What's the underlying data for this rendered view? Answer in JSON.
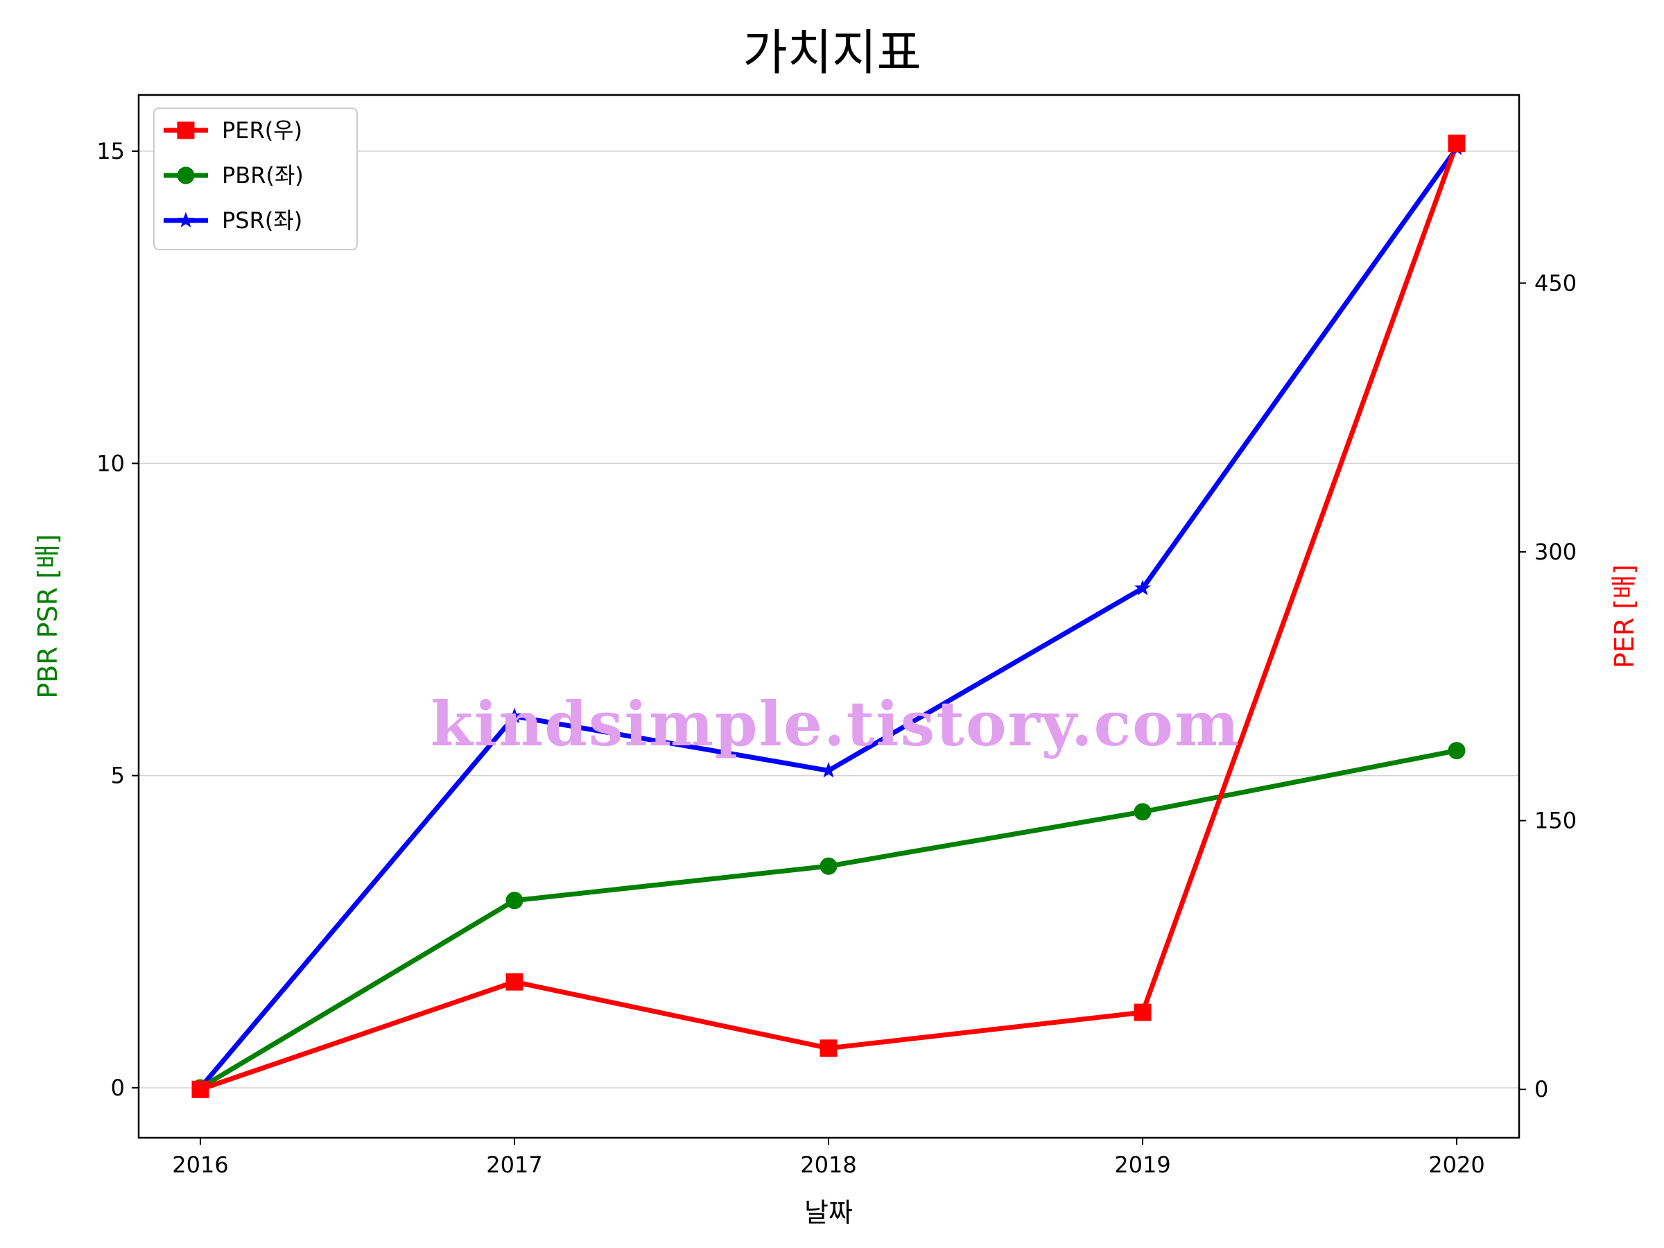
{
  "chart_data": {
    "type": "line",
    "title": "가치지표",
    "xlabel": "날짜",
    "ylabel_left": "PBR PSR [배]",
    "ylabel_right": "PER [배]",
    "categories": [
      "2016",
      "2017",
      "2018",
      "2019",
      "2020"
    ],
    "left_axis": {
      "ylim": [
        -0.8,
        15.9
      ],
      "ticks": [
        0,
        5,
        10,
        15
      ],
      "tick_labels": [
        "0",
        "5",
        "10",
        "15"
      ],
      "grid": true
    },
    "right_axis": {
      "ylim": [
        -27,
        555
      ],
      "ticks": [
        0,
        150,
        300,
        450
      ],
      "tick_labels": [
        "0",
        "150",
        "300",
        "450"
      ]
    },
    "series": [
      {
        "name": "PER(우)",
        "axis": "right",
        "color": "#ff0000",
        "marker": "square",
        "values": [
          0,
          60,
          23,
          43,
          528
        ]
      },
      {
        "name": "PBR(좌)",
        "axis": "left",
        "color": "#008000",
        "marker": "circle",
        "values": [
          0,
          3.0,
          3.55,
          4.42,
          5.4
        ]
      },
      {
        "name": "PSR(좌)",
        "axis": "left",
        "color": "#0000ff",
        "marker": "star",
        "values": [
          0,
          5.95,
          5.08,
          8.0,
          15.05
        ]
      }
    ],
    "legend_position": "top-left",
    "watermark": "kindsimple.tistory.com",
    "watermark_color": "#e0a0ee"
  }
}
